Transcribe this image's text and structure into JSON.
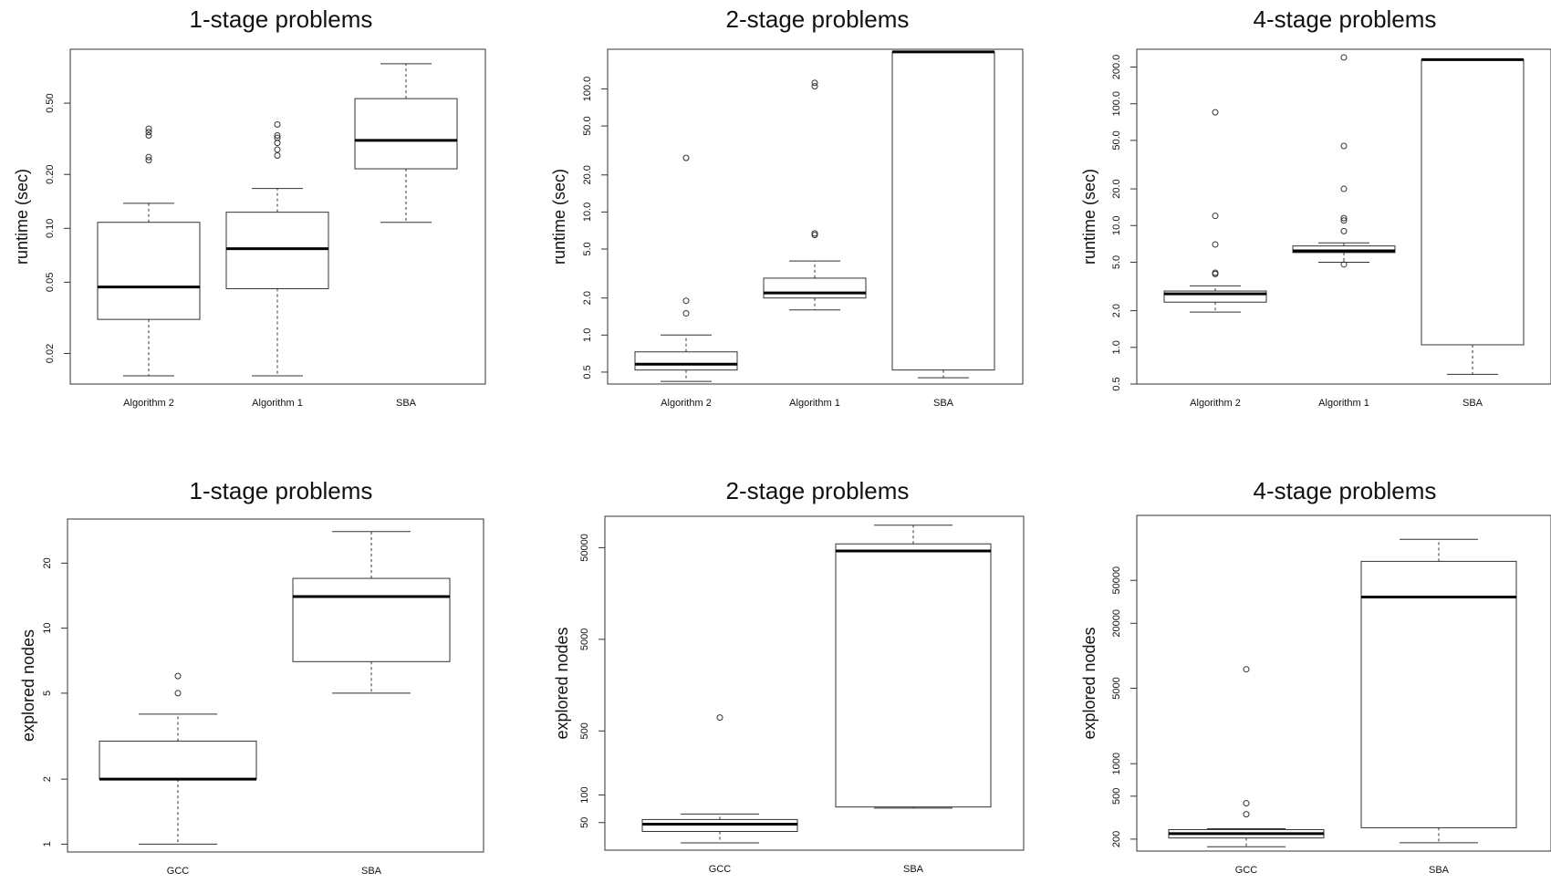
{
  "chart_data": [
    {
      "type": "boxplot",
      "title": "1-stage problems",
      "ylabel": "runtime (sec)",
      "log_y": true,
      "ylim": [
        0.0135,
        1.0
      ],
      "yticks": [
        0.02,
        0.05,
        0.1,
        0.2,
        0.5
      ],
      "ytick_labels": [
        "0.02",
        "0.05",
        "0.10",
        "0.20",
        "0.50"
      ],
      "categories": [
        "Algorithm 2",
        "Algorithm 1",
        "SBA"
      ],
      "boxes": [
        {
          "min": 0.015,
          "q1": 0.031,
          "median": 0.047,
          "q3": 0.108,
          "max": 0.138,
          "outliers": [
            0.24,
            0.25,
            0.33,
            0.345,
            0.36
          ]
        },
        {
          "min": 0.015,
          "q1": 0.046,
          "median": 0.077,
          "q3": 0.123,
          "max": 0.167,
          "outliers": [
            0.255,
            0.275,
            0.3,
            0.32,
            0.33,
            0.38
          ]
        },
        {
          "min": 0.108,
          "q1": 0.215,
          "median": 0.31,
          "q3": 0.53,
          "max": 0.83,
          "outliers": []
        }
      ]
    },
    {
      "type": "boxplot",
      "title": "2-stage problems",
      "ylabel": "runtime (sec)",
      "log_y": true,
      "ylim": [
        0.4,
        210
      ],
      "yticks": [
        0.5,
        1.0,
        2.0,
        5.0,
        10.0,
        20.0,
        50.0,
        100.0
      ],
      "ytick_labels": [
        "0.5",
        "1.0",
        "2.0",
        "5.0",
        "10.0",
        "20.0",
        "50.0",
        "100.0"
      ],
      "categories": [
        "Algorithm 2",
        "Algorithm 1",
        "SBA"
      ],
      "boxes": [
        {
          "min": 0.42,
          "q1": 0.52,
          "median": 0.58,
          "q3": 0.73,
          "max": 1.0,
          "outliers": [
            1.5,
            1.9,
            27.5
          ]
        },
        {
          "min": 1.6,
          "q1": 2.0,
          "median": 2.2,
          "q3": 2.9,
          "max": 4.0,
          "outliers": [
            6.5,
            6.7,
            105,
            112
          ]
        },
        {
          "min": 0.45,
          "q1": 0.52,
          "median": 200,
          "q3": 200,
          "max": 200,
          "outliers": []
        }
      ]
    },
    {
      "type": "boxplot",
      "title": "4-stage problems",
      "ylabel": "runtime (sec)",
      "log_y": true,
      "ylim": [
        0.5,
        280
      ],
      "yticks": [
        0.5,
        1.0,
        2.0,
        5.0,
        10.0,
        20.0,
        50.0,
        100.0,
        200.0
      ],
      "ytick_labels": [
        "0.5",
        "1.0",
        "2.0",
        "5.0",
        "10.0",
        "20.0",
        "50.0",
        "100.0",
        "200.0"
      ],
      "categories": [
        "Algorithm 2",
        "Algorithm 1",
        "SBA"
      ],
      "boxes": [
        {
          "min": 1.95,
          "q1": 2.35,
          "median": 2.75,
          "q3": 2.9,
          "max": 3.2,
          "outliers": [
            4.0,
            4.1,
            7.0,
            12.0,
            85
          ]
        },
        {
          "min": 5.0,
          "q1": 6.0,
          "median": 6.2,
          "q3": 6.8,
          "max": 7.2,
          "outliers": [
            4.8,
            9.0,
            11.0,
            11.5,
            20,
            45,
            240
          ]
        },
        {
          "min": 0.6,
          "q1": 1.05,
          "median": 230,
          "q3": 230,
          "max": 230,
          "outliers": []
        }
      ]
    },
    {
      "type": "boxplot",
      "title": "1-stage problems",
      "ylabel": "explored nodes",
      "log_y": true,
      "ylim": [
        0.92,
        32
      ],
      "yticks": [
        1,
        2,
        5,
        10,
        20
      ],
      "ytick_labels": [
        "1",
        "2",
        "5",
        "10",
        "20"
      ],
      "categories": [
        "GCC",
        "SBA"
      ],
      "boxes": [
        {
          "min": 1,
          "q1": 2,
          "median": 2,
          "q3": 3,
          "max": 4,
          "outliers": [
            5,
            6
          ]
        },
        {
          "min": 5,
          "q1": 7,
          "median": 14,
          "q3": 17,
          "max": 28,
          "outliers": []
        }
      ]
    },
    {
      "type": "boxplot",
      "title": "2-stage problems",
      "ylabel": "explored nodes",
      "log_y": true,
      "ylim": [
        25,
        110000
      ],
      "yticks": [
        50,
        100,
        500,
        5000,
        50000
      ],
      "ytick_labels": [
        "50",
        "100",
        "500",
        "5000",
        "50000"
      ],
      "categories": [
        "GCC",
        "SBA"
      ],
      "boxes": [
        {
          "min": 30,
          "q1": 40,
          "median": 48,
          "q3": 54,
          "max": 62,
          "outliers": [
            700
          ]
        },
        {
          "min": 72,
          "q1": 74,
          "median": 46000,
          "q3": 55000,
          "max": 88000,
          "outliers": []
        }
      ]
    },
    {
      "type": "boxplot",
      "title": "4-stage problems",
      "ylabel": "explored nodes",
      "log_y": true,
      "ylim": [
        155,
        200000
      ],
      "yticks": [
        200,
        500,
        1000,
        5000,
        20000,
        50000
      ],
      "ytick_labels": [
        "200",
        "500",
        "1000",
        "5000",
        "20000",
        "50000"
      ],
      "categories": [
        "GCC",
        "SBA"
      ],
      "boxes": [
        {
          "min": 170,
          "q1": 205,
          "median": 225,
          "q3": 245,
          "max": 250,
          "outliers": [
            340,
            430,
            7500
          ]
        },
        {
          "min": 185,
          "q1": 255,
          "median": 35000,
          "q3": 75000,
          "max": 120000,
          "outliers": []
        }
      ]
    }
  ]
}
